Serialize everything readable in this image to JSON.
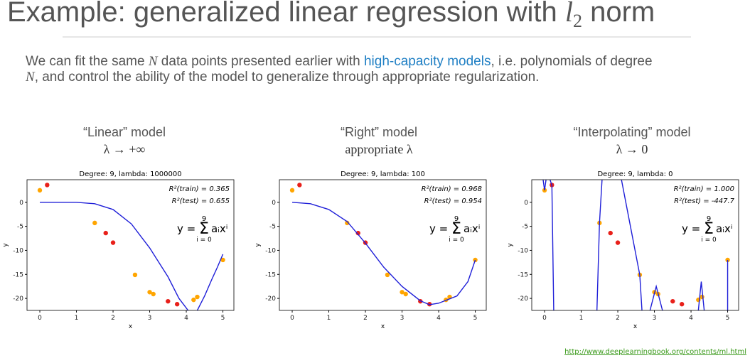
{
  "header": {
    "title": [
      "Example: generalized linear regression with ",
      "l",
      "2",
      " norm"
    ]
  },
  "intro": {
    "parts": [
      "We can fit the same ",
      "N",
      " data points presented earlier with ",
      "high-capacity models",
      ", i.e. polynomials of degree"
    ],
    "parts2": [
      "N",
      ", and control the ability of the model to generalize through appropriate regularization."
    ]
  },
  "columns": [
    [
      "“Linear” model",
      "λ → +∞"
    ],
    [
      "“Right” model",
      "appropriate λ"
    ],
    [
      "“Interpolating” model",
      "λ → 0"
    ]
  ],
  "footer": "http://www.deeplearningbook.org/contents/ml.html",
  "chart_data": [
    {
      "type": "scatter",
      "title": "Degree: 9, lambda: 1000000",
      "xlabel": "x",
      "ylabel": "y",
      "xlim": [
        -0.35,
        5.3
      ],
      "ylim": [
        -22.5,
        4.7
      ],
      "xticks": [
        0,
        1,
        2,
        3,
        4,
        5
      ],
      "yticks": [
        0,
        -5,
        -10,
        -15,
        -20
      ],
      "annotations": [
        "R²(train) = 0.365",
        "R²(test) = 0.655"
      ],
      "formula": [
        "y =",
        "Σ",
        "9",
        "i = 0",
        "aᵢxⁱ"
      ],
      "series": [
        {
          "color": "#ffa500",
          "x": [
            0,
            1.5,
            2.6,
            3.0,
            3.1,
            4.2,
            4.3,
            5
          ],
          "values": [
            2.5,
            -4.3,
            -15.1,
            -18.7,
            -19.1,
            -20.3,
            -19.7,
            -12
          ]
        },
        {
          "color": "#e8201a",
          "x": [
            0.2,
            1.8,
            2.0,
            3.5,
            3.75
          ],
          "values": [
            3.6,
            -6.4,
            -8.4,
            -20.6,
            -21.2
          ]
        },
        {
          "color": "#1f1fd8",
          "line": true,
          "x": [
            0,
            0.5,
            1,
            1.5,
            2,
            2.5,
            3,
            3.5,
            3.8,
            4.05,
            4.1,
            4.3,
            4.5,
            4.7,
            4.85,
            5
          ],
          "values": [
            0,
            0,
            0,
            -0.3,
            -1.5,
            -4.5,
            -9.5,
            -15.5,
            -20,
            -22.5,
            null,
            -22.5,
            -19.5,
            -16,
            -13.5,
            -10.8
          ]
        }
      ]
    },
    {
      "type": "scatter",
      "title": "Degree: 9, lambda: 100",
      "xlabel": "x",
      "ylabel": "y",
      "xlim": [
        -0.35,
        5.3
      ],
      "ylim": [
        -22.5,
        4.7
      ],
      "xticks": [
        0,
        1,
        2,
        3,
        4,
        5
      ],
      "yticks": [
        0,
        -5,
        -10,
        -15,
        -20
      ],
      "annotations": [
        "R²(train) = 0.968",
        "R²(test) = 0.954"
      ],
      "formula": [
        "y =",
        "Σ",
        "9",
        "i = 0",
        "aᵢxⁱ"
      ],
      "series": [
        {
          "color": "#ffa500",
          "x": [
            0,
            1.5,
            2.6,
            3.0,
            3.1,
            4.2,
            4.3,
            5
          ],
          "values": [
            2.5,
            -4.3,
            -15.1,
            -18.7,
            -19.1,
            -20.3,
            -19.7,
            -12
          ]
        },
        {
          "color": "#e8201a",
          "x": [
            0.2,
            1.8,
            2.0,
            3.5,
            3.75
          ],
          "values": [
            3.6,
            -6.4,
            -8.4,
            -20.6,
            -21.2
          ]
        },
        {
          "color": "#1f1fd8",
          "line": true,
          "x": [
            0,
            0.5,
            1,
            1.5,
            2,
            2.5,
            3,
            3.5,
            3.75,
            4,
            4.5,
            4.8,
            5
          ],
          "values": [
            0,
            -0.3,
            -1.5,
            -4,
            -8.5,
            -13.5,
            -17.5,
            -20.5,
            -21.3,
            -21,
            -19.5,
            -16.5,
            -12
          ]
        }
      ]
    },
    {
      "type": "scatter",
      "title": "Degree: 9, lambda: 0",
      "xlabel": "x",
      "ylabel": "y",
      "xlim": [
        -0.35,
        5.3
      ],
      "ylim": [
        -22.5,
        4.7
      ],
      "xticks": [
        0,
        1,
        2,
        3,
        4,
        5
      ],
      "yticks": [
        0,
        -5,
        -10,
        -15,
        -20
      ],
      "annotations": [
        "R²(train) = 1.000",
        "R²(test) = -447.7"
      ],
      "formula": [
        "y =",
        "Σ",
        "9",
        "i = 0",
        "aᵢxⁱ"
      ],
      "series": [
        {
          "color": "#ffa500",
          "x": [
            0,
            1.5,
            2.6,
            3.0,
            3.1,
            4.2,
            4.3,
            5
          ],
          "values": [
            2.5,
            -4.3,
            -15.1,
            -18.7,
            -19.1,
            -20.3,
            -19.7,
            -12
          ]
        },
        {
          "color": "#e8201a",
          "x": [
            0.2,
            1.8,
            2.0,
            3.5,
            3.75
          ],
          "values": [
            3.6,
            -6.4,
            -8.4,
            -20.6,
            -21.2
          ]
        },
        {
          "color": "#1f1fd8",
          "line": true,
          "x": [
            -0.04,
            0,
            0.04,
            0.1,
            0.15,
            0.2,
            0.25,
            0.3,
            1.43,
            1.5,
            1.57,
            1.8,
            2.1,
            2.6,
            2.66,
            2.8,
            2.88,
            3.05,
            3.22,
            3.6,
            4.2,
            4.28,
            4.36,
            4.6,
            5,
            5
          ],
          "values": [
            4.7,
            2.5,
            4.7,
            null,
            4.7,
            3.5,
            -22.5,
            null,
            -22.5,
            -4.3,
            4.7,
            null,
            4.7,
            -15.1,
            -22.5,
            null,
            -22.5,
            -17.5,
            -22.5,
            null,
            -22.5,
            -16.5,
            -22.5,
            null,
            -22.5,
            -12
          ]
        }
      ]
    }
  ]
}
